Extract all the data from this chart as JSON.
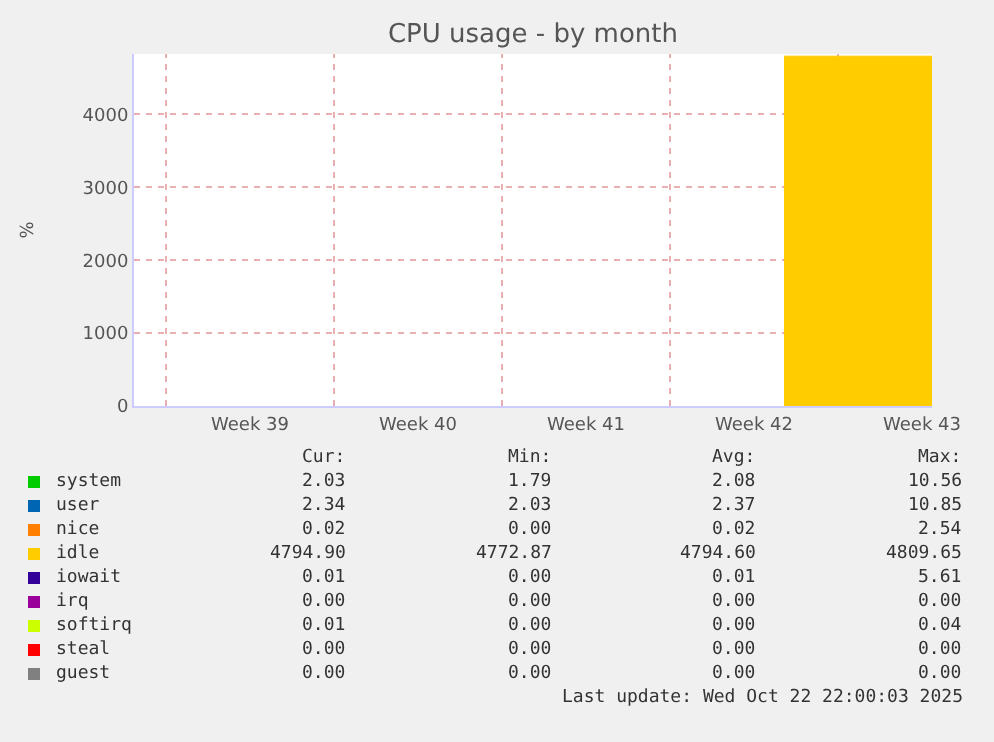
{
  "chart_data": {
    "type": "area",
    "title": "CPU usage - by month",
    "ylabel": "%",
    "xlim": [
      "2025-09-19T16:00",
      "2025-10-22T22:00"
    ],
    "xticks": [
      {
        "value": "2025-09-21T00:00",
        "label": null
      },
      {
        "value": "2025-09-28T00:00",
        "label": null
      },
      {
        "value": "2025-10-05T00:00",
        "label": null
      },
      {
        "value": "2025-10-12T00:00",
        "label": null
      },
      {
        "value": "2025-10-19T00:00",
        "label": null
      },
      {
        "value": "2025-09-24T12:00",
        "label": "Week 39"
      },
      {
        "value": "2025-10-01T12:00",
        "label": "Week 40"
      },
      {
        "value": "2025-10-08T12:00",
        "label": "Week 41"
      },
      {
        "value": "2025-10-15T12:00",
        "label": "Week 42"
      },
      {
        "value": "2025-10-22T12:00",
        "label": "Week 43"
      }
    ],
    "ylim": [
      0,
      4830
    ],
    "yticks": [
      0,
      1000,
      2000,
      3000,
      4000
    ],
    "grid": true,
    "legend": "bottom",
    "series": [
      {
        "name": "system",
        "color": "#00cc00"
      },
      {
        "name": "user",
        "color": "#0066b3"
      },
      {
        "name": "nice",
        "color": "#ff8000"
      },
      {
        "name": "idle",
        "color": "#ffcc00",
        "x": [
          "2025-10-16T18:00",
          "2025-10-22T22:00"
        ],
        "values": [
          4800,
          4800
        ]
      },
      {
        "name": "iowait",
        "color": "#330099"
      },
      {
        "name": "irq",
        "color": "#990099"
      },
      {
        "name": "softirq",
        "color": "#ccff00"
      },
      {
        "name": "steal",
        "color": "#ff0000"
      },
      {
        "name": "guest",
        "color": "#808080"
      }
    ],
    "annotations": [
      "Cur:",
      "Min:",
      "Avg:",
      "Max:",
      "2.03",
      "1.79",
      "2.08",
      "10.56",
      "2.34",
      "2.03",
      "2.37",
      "10.85",
      "0.02",
      "0.00",
      "0.02",
      "2.54",
      "4794.90",
      "4772.87",
      "4794.60",
      "4809.65",
      "0.01",
      "0.00",
      "0.01",
      "5.61",
      "0.00",
      "0.00",
      "0.00",
      "0.00",
      "0.01",
      "0.00",
      "0.00",
      "0.04",
      "0.00",
      "0.00",
      "0.00",
      "0.00",
      "0.00",
      "0.00",
      "0.00",
      "0.00",
      "Last update: Wed Oct 22 22:00:03 2025"
    ]
  }
}
